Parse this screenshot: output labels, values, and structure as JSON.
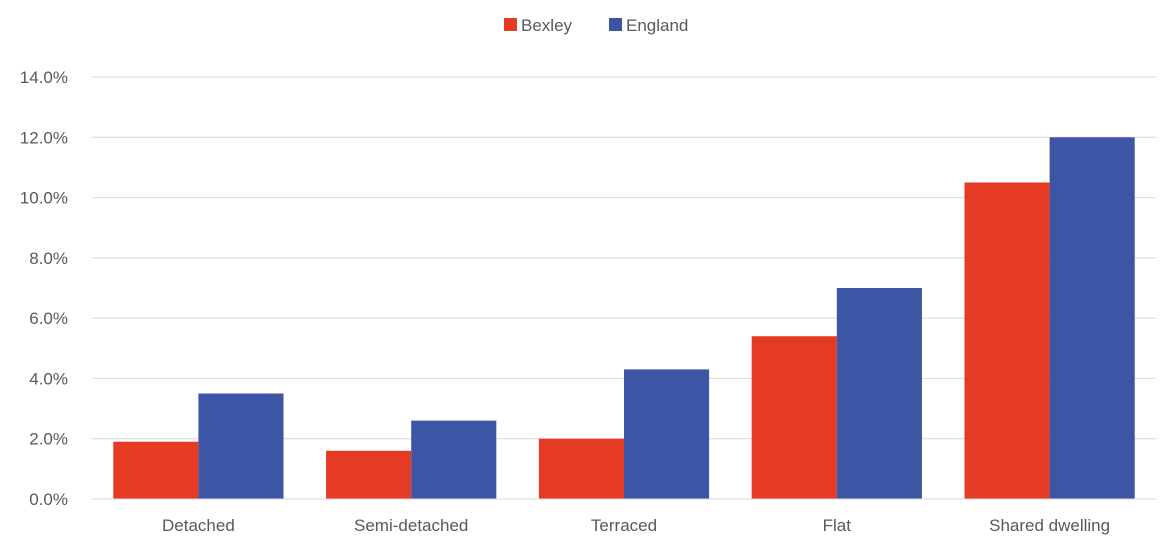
{
  "chart_data": {
    "type": "bar",
    "title": "",
    "xlabel": "",
    "ylabel": "",
    "categories": [
      "Detached",
      "Semi-detached",
      "Terraced",
      "Flat",
      "Shared dwelling"
    ],
    "series": [
      {
        "name": "Bexley",
        "values": [
          1.9,
          1.6,
          2.0,
          5.4,
          10.5
        ],
        "color": "#e53a23"
      },
      {
        "name": "England",
        "values": [
          3.5,
          2.6,
          4.3,
          7.0,
          12.0
        ],
        "color": "#3c56a5"
      }
    ],
    "ylim": [
      0,
      14
    ],
    "yticks": [
      "0.0%",
      "2.0%",
      "4.0%",
      "6.0%",
      "8.0%",
      "10.0%",
      "12.0%",
      "14.0%"
    ],
    "value_format": "percent",
    "grid": true,
    "legend_position": "top-center"
  }
}
